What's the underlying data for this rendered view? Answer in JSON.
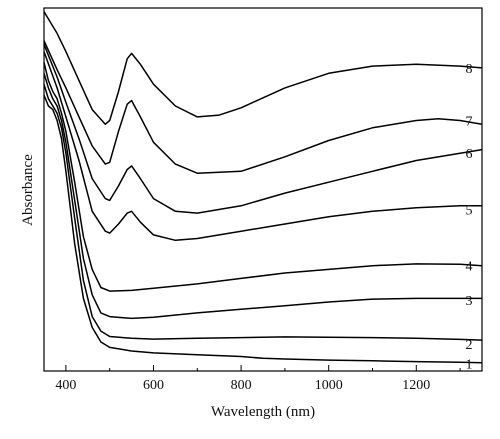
{
  "chart_data": {
    "type": "line",
    "title": "",
    "xlabel": "Wavelength (nm)",
    "ylabel": "Absorbance",
    "xlim": [
      350,
      1350
    ],
    "ylim": [
      0,
      1
    ],
    "xticks": [
      400,
      600,
      800,
      1000,
      1200
    ],
    "xtick_labels": [
      "400",
      "600",
      "800",
      "1000",
      "1200"
    ],
    "y_tick_labels_shown": false,
    "grid": false,
    "legend": "none",
    "curve_labels_position": "right",
    "series": [
      {
        "name": "1",
        "x": [
          350,
          360,
          370,
          380,
          390,
          400,
          420,
          440,
          460,
          480,
          500,
          550,
          600,
          700,
          800,
          850,
          900,
          1000,
          1100,
          1200,
          1300,
          1350
        ],
        "y": [
          0.76,
          0.73,
          0.72,
          0.69,
          0.64,
          0.55,
          0.35,
          0.2,
          0.12,
          0.08,
          0.065,
          0.055,
          0.05,
          0.045,
          0.04,
          0.035,
          0.033,
          0.03,
          0.028,
          0.026,
          0.024,
          0.023
        ]
      },
      {
        "name": "2",
        "x": [
          350,
          360,
          370,
          380,
          390,
          400,
          420,
          440,
          460,
          480,
          500,
          550,
          600,
          700,
          800,
          900,
          1000,
          1100,
          1200,
          1300,
          1350
        ],
        "y": [
          0.79,
          0.75,
          0.73,
          0.71,
          0.67,
          0.6,
          0.42,
          0.25,
          0.15,
          0.11,
          0.095,
          0.09,
          0.088,
          0.09,
          0.092,
          0.094,
          0.093,
          0.092,
          0.09,
          0.087,
          0.085
        ]
      },
      {
        "name": "3",
        "x": [
          350,
          360,
          370,
          380,
          390,
          400,
          420,
          440,
          460,
          480,
          500,
          550,
          600,
          700,
          800,
          900,
          1000,
          1100,
          1200,
          1300,
          1350
        ],
        "y": [
          0.82,
          0.78,
          0.75,
          0.73,
          0.69,
          0.63,
          0.47,
          0.31,
          0.21,
          0.16,
          0.15,
          0.145,
          0.148,
          0.16,
          0.17,
          0.18,
          0.19,
          0.198,
          0.2,
          0.2,
          0.2
        ]
      },
      {
        "name": "4",
        "x": [
          350,
          360,
          370,
          380,
          390,
          400,
          420,
          440,
          460,
          480,
          500,
          550,
          600,
          700,
          800,
          900,
          1000,
          1100,
          1200,
          1300,
          1350
        ],
        "y": [
          0.85,
          0.8,
          0.77,
          0.75,
          0.71,
          0.66,
          0.52,
          0.37,
          0.28,
          0.23,
          0.22,
          0.222,
          0.228,
          0.24,
          0.255,
          0.27,
          0.28,
          0.29,
          0.295,
          0.294,
          0.29
        ]
      },
      {
        "name": "5",
        "x": [
          350,
          380,
          400,
          430,
          460,
          490,
          500,
          520,
          540,
          550,
          570,
          600,
          650,
          700,
          800,
          900,
          1000,
          1100,
          1200,
          1300,
          1350
        ],
        "y": [
          0.88,
          0.78,
          0.7,
          0.58,
          0.44,
          0.385,
          0.38,
          0.405,
          0.435,
          0.44,
          0.41,
          0.375,
          0.36,
          0.365,
          0.385,
          0.405,
          0.425,
          0.44,
          0.45,
          0.455,
          0.455
        ]
      },
      {
        "name": "6",
        "x": [
          350,
          380,
          400,
          430,
          460,
          490,
          500,
          520,
          540,
          550,
          570,
          600,
          650,
          700,
          800,
          900,
          1000,
          1100,
          1200,
          1300,
          1350
        ],
        "y": [
          0.9,
          0.81,
          0.74,
          0.64,
          0.53,
          0.475,
          0.47,
          0.51,
          0.555,
          0.565,
          0.53,
          0.475,
          0.44,
          0.435,
          0.455,
          0.49,
          0.52,
          0.55,
          0.58,
          0.6,
          0.61
        ]
      },
      {
        "name": "7",
        "x": [
          350,
          380,
          400,
          430,
          460,
          490,
          500,
          520,
          540,
          550,
          570,
          600,
          650,
          700,
          800,
          900,
          1000,
          1100,
          1200,
          1250,
          1300,
          1350
        ],
        "y": [
          0.91,
          0.83,
          0.78,
          0.7,
          0.62,
          0.57,
          0.575,
          0.66,
          0.735,
          0.745,
          0.7,
          0.63,
          0.57,
          0.545,
          0.55,
          0.59,
          0.635,
          0.67,
          0.69,
          0.695,
          0.69,
          0.68
        ]
      },
      {
        "name": "8",
        "x": [
          350,
          380,
          400,
          430,
          460,
          490,
          500,
          520,
          540,
          550,
          570,
          600,
          650,
          700,
          750,
          800,
          900,
          1000,
          1100,
          1200,
          1300,
          1350
        ],
        "y": [
          0.99,
          0.93,
          0.88,
          0.8,
          0.72,
          0.68,
          0.69,
          0.77,
          0.86,
          0.875,
          0.845,
          0.79,
          0.73,
          0.7,
          0.705,
          0.725,
          0.78,
          0.82,
          0.84,
          0.845,
          0.84,
          0.835
        ]
      }
    ],
    "label_values": {
      "1": 0.02,
      "2": 0.075,
      "3": 0.195,
      "4": 0.29,
      "5": 0.445,
      "6": 0.6,
      "7": 0.69,
      "8": 0.835
    }
  }
}
